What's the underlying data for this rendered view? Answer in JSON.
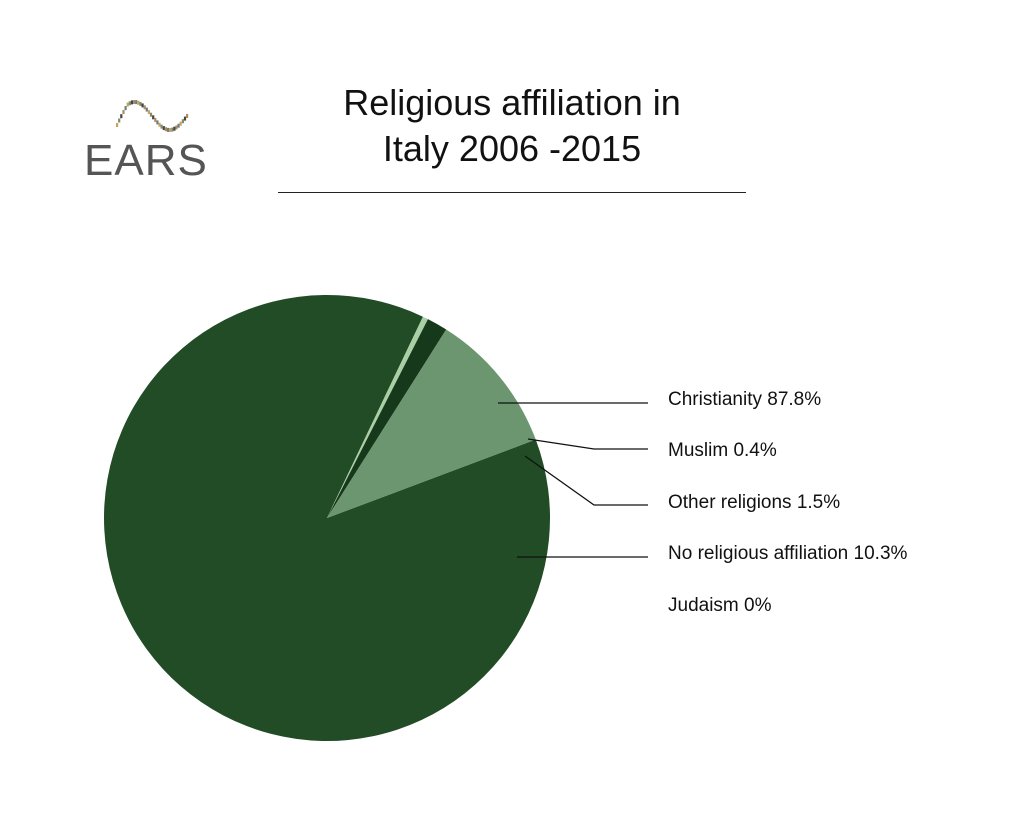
{
  "logo": {
    "text": "EARS",
    "icon": "ears-swirl-logo"
  },
  "title_line1": "Religious affiliation in",
  "title_line2": "Italy 2006 -2015",
  "chart_data": {
    "type": "pie",
    "title": "Religious affiliation in Italy 2006 -2015",
    "slices": [
      {
        "label": "Christianity 87.8%",
        "name": "Christianity",
        "value": 87.8,
        "color": "#214c26"
      },
      {
        "label": "Muslim 0.4%",
        "name": "Muslim",
        "value": 0.4,
        "color": "#a9cfa4"
      },
      {
        "label": "Other religions 1.5%",
        "name": "Other religions",
        "value": 1.5,
        "color": "#17391b"
      },
      {
        "label": "No religious affiliation 10.3%",
        "name": "No religious affiliation",
        "value": 10.3,
        "color": "#6b966f"
      },
      {
        "label": "Judaism 0%",
        "name": "Judaism",
        "value": 0,
        "color": "#214c26"
      }
    ],
    "legend_position": "right"
  }
}
